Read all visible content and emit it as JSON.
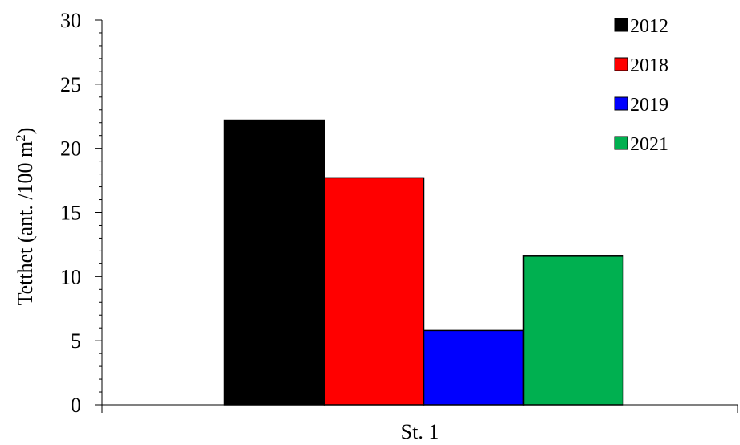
{
  "chart_data": {
    "type": "bar",
    "categories": [
      "St. 1"
    ],
    "series": [
      {
        "name": "2012",
        "values": [
          22.2
        ],
        "color": "#000000"
      },
      {
        "name": "2018",
        "values": [
          17.7
        ],
        "color": "#ff0000"
      },
      {
        "name": "2019",
        "values": [
          5.8
        ],
        "color": "#0000ff"
      },
      {
        "name": "2021",
        "values": [
          11.6
        ],
        "color": "#00b050"
      }
    ],
    "ylabel": "Tetthet (ant. /100 m²)",
    "ylabel_main": "Tetthet (ant. /100 m",
    "ylabel_sup": "2",
    "ylabel_end": ")",
    "ylim": [
      0,
      30
    ],
    "yticks": [
      "0",
      "5",
      "10",
      "15",
      "20",
      "25",
      "30"
    ],
    "grid": false,
    "legend_position": "top-right"
  }
}
